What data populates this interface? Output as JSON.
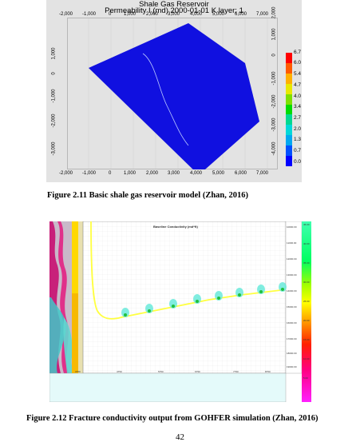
{
  "figure1": {
    "title": "Shale Gas Reservoir",
    "subtitle": "Permeability I (md) 2000-01-01     K layer: 1",
    "x_ticks": [
      "-2,000",
      "-1,000",
      "0",
      "1,000",
      "2,000",
      "3,000",
      "4,000",
      "5,000",
      "6,000",
      "7,000"
    ],
    "y_ticks_left": [
      "1,000",
      "0",
      "-1,000",
      "-2,000",
      "-3,000",
      "-4,000"
    ],
    "y_ticks_right": [
      "2,000",
      "1,000",
      "0",
      "-1,000",
      "-2,000",
      "-3,000",
      "-4,000"
    ],
    "colorbar": {
      "labels": [
        "6.7",
        "6.0",
        "5.4",
        "4.7",
        "4.0",
        "3.4",
        "2.7",
        "2.0",
        "1.3",
        "0.7",
        "0.0"
      ],
      "colors": [
        "#ff0000",
        "#ff5a00",
        "#ffb000",
        "#e8e800",
        "#7ee000",
        "#00dc00",
        "#00d890",
        "#00d8d8",
        "#00a8f0",
        "#0050ff",
        "#0000ff"
      ]
    },
    "reservoir_color": "#1010e0",
    "caption": "Figure 2.11 Basic shale gas reservoir model (Zhan, 2016)"
  },
  "figure2": {
    "title": "Baseline Conductivity (md*ft)",
    "bottom_ticks": [
      "3750",
      "4750",
      "5750",
      "6750",
      "7750",
      "8750"
    ],
    "right_depth_ticks": [
      "10000.00",
      "11000.00",
      "12000.00",
      "13000.00",
      "14000.00",
      "15000.00",
      "16000.00",
      "17000.00",
      "18000.00",
      "19000.00"
    ],
    "legend_ticks": [
      "45.00",
      "40.00",
      "35.00",
      "30.00",
      "25.00",
      "20.00",
      "15.00",
      "10.00",
      "5.00"
    ],
    "caption": "Figure 2.12 Fracture conductivity output from GOHFER simulation (Zhan, 2016)"
  },
  "page_number": "42"
}
